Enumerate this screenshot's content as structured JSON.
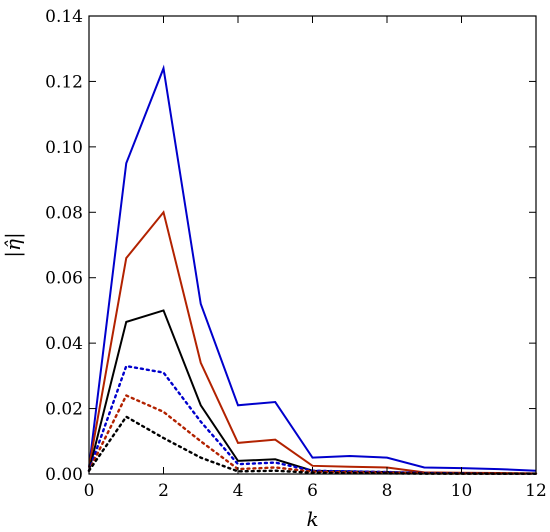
{
  "chart_data": {
    "type": "line",
    "title": "",
    "xlabel": "k",
    "ylabel": "|η̂|",
    "xlim": [
      0,
      12
    ],
    "ylim": [
      0,
      0.14
    ],
    "xticks": [
      0,
      2,
      4,
      6,
      8,
      10,
      12
    ],
    "yticks": [
      0.0,
      0.02,
      0.04,
      0.06,
      0.08,
      0.1,
      0.12,
      0.14
    ],
    "xtick_labels": [
      "0",
      "2",
      "4",
      "6",
      "8",
      "10",
      "12"
    ],
    "ytick_labels": [
      "0.00",
      "0.02",
      "0.04",
      "0.06",
      "0.08",
      "0.10",
      "0.12",
      "0.14"
    ],
    "grid": false,
    "x": [
      0,
      1,
      2,
      3,
      4,
      5,
      6,
      7,
      8,
      9,
      10,
      11,
      12
    ],
    "series": [
      {
        "color": "#0000cc",
        "style": "solid",
        "values": [
          0.002,
          0.095,
          0.124,
          0.052,
          0.021,
          0.022,
          0.005,
          0.0055,
          0.005,
          0.002,
          0.0018,
          0.0015,
          0.001
        ]
      },
      {
        "color": "#b22200",
        "style": "solid",
        "values": [
          0.002,
          0.066,
          0.08,
          0.034,
          0.0095,
          0.0105,
          0.0025,
          0.0022,
          0.002,
          0.0005,
          0.0004,
          0.0003,
          0.0002
        ]
      },
      {
        "color": "#000000",
        "style": "solid",
        "values": [
          0.001,
          0.0465,
          0.05,
          0.021,
          0.004,
          0.0045,
          0.001,
          0.0008,
          0.0006,
          0.0003,
          0.0002,
          0.0001,
          0.0001
        ]
      },
      {
        "color": "#0000cc",
        "style": "dotted",
        "values": [
          0.001,
          0.033,
          0.031,
          0.016,
          0.003,
          0.0035,
          0.001,
          0.0008,
          0.0006,
          0.0003,
          0.0002,
          0.0001,
          0.0001
        ]
      },
      {
        "color": "#b22200",
        "style": "dotted",
        "values": [
          0.001,
          0.024,
          0.019,
          0.01,
          0.0015,
          0.002,
          0.0007,
          0.0005,
          0.0004,
          0.0002,
          0.0001,
          0.0001,
          0.0001
        ]
      },
      {
        "color": "#000000",
        "style": "dotted",
        "values": [
          0.001,
          0.0175,
          0.011,
          0.005,
          0.0008,
          0.001,
          0.0004,
          0.0003,
          0.0002,
          0.0001,
          0.0001,
          0.0001,
          0.0001
        ]
      }
    ]
  }
}
